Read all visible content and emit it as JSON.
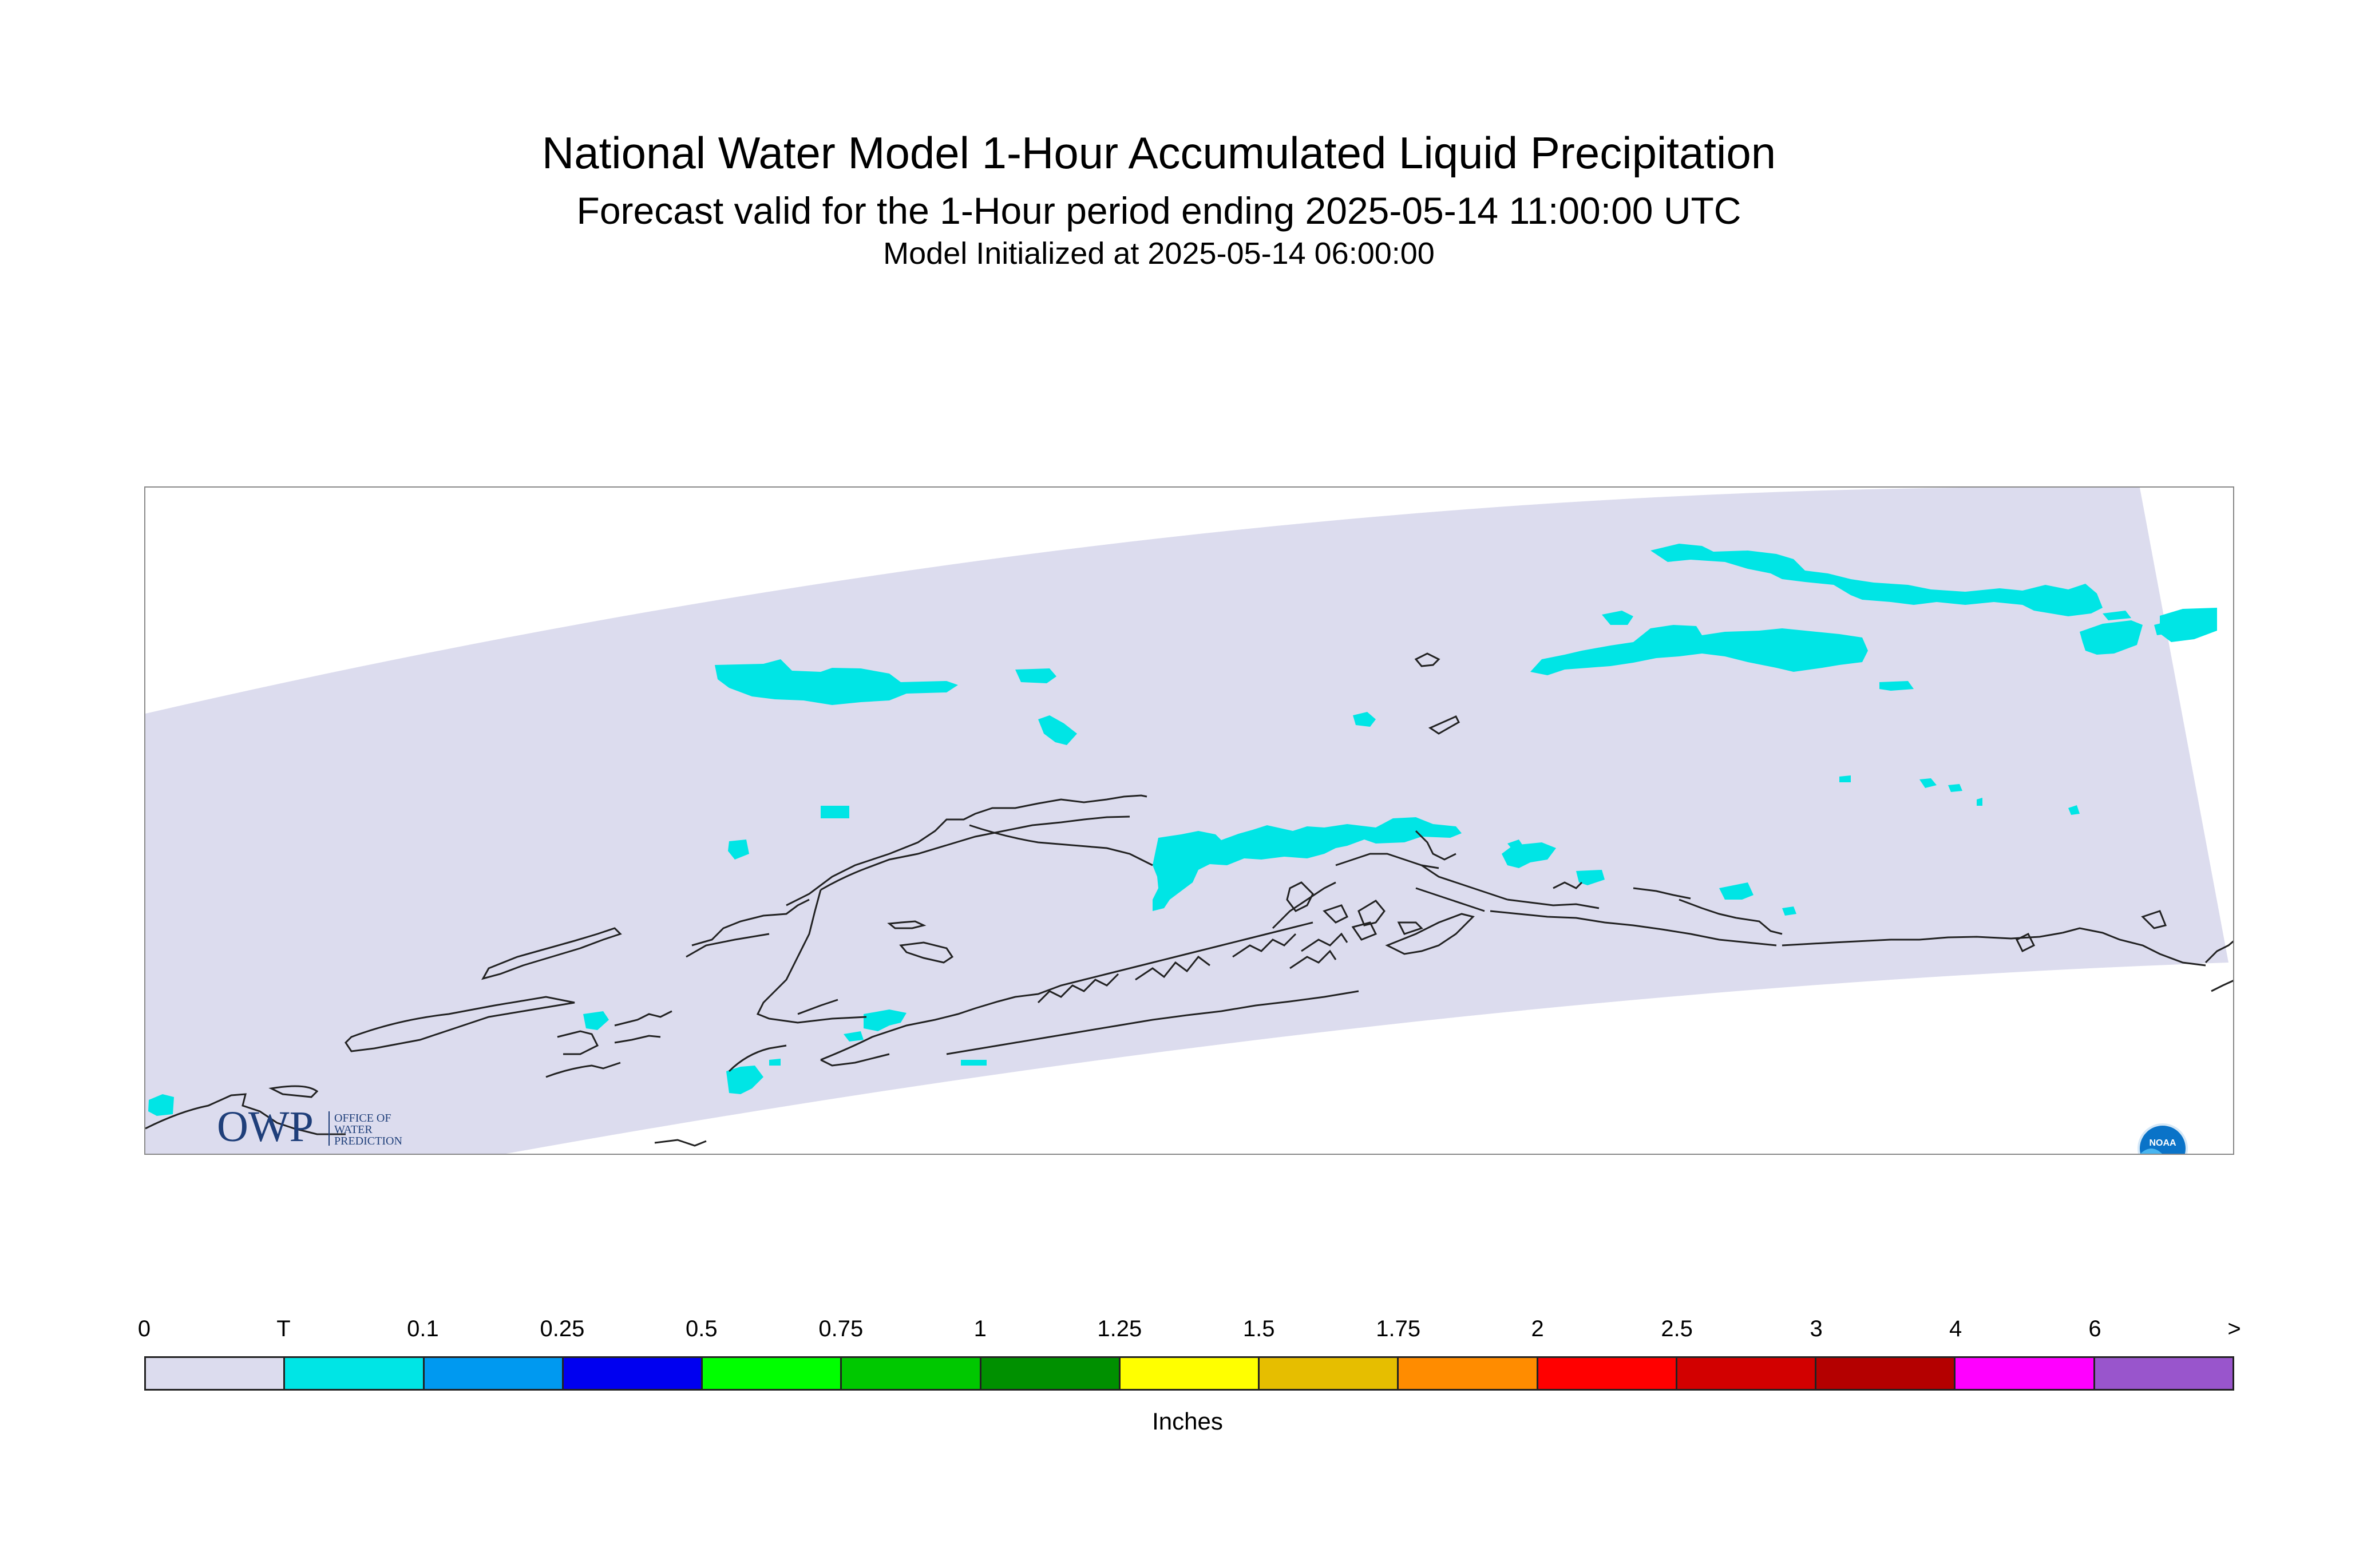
{
  "title": "National Water Model 1-Hour Accumulated Liquid Precipitation",
  "subtitle": "Forecast valid for the 1-Hour period ending 2025-05-14 11:00:00 UTC",
  "init_line": "Model Initialized at 2025-05-14 06:00:00",
  "map": {
    "domain_fill": "#dcdcee",
    "precip_color": "#00e5e5",
    "coastline_color": "#222222",
    "owp_logo": {
      "big": "OWP",
      "line1": "OFFICE OF",
      "line2": "WATER",
      "line3": "PREDICTION"
    },
    "noaa_logo": {
      "text": "NOAA"
    }
  },
  "legend": {
    "units": "Inches",
    "labels": [
      "0",
      "T",
      "0.1",
      "0.25",
      "0.5",
      "0.75",
      "1",
      "1.25",
      "1.5",
      "1.75",
      "2",
      "2.5",
      "3",
      "4",
      "6",
      ">"
    ],
    "colors": [
      "#dcdcee",
      "#00e5e5",
      "#0099f0",
      "#0000f0",
      "#00ff00",
      "#00c800",
      "#009000",
      "#ffff00",
      "#e6be00",
      "#ff8c00",
      "#ff0000",
      "#d20000",
      "#b40000",
      "#ff00ff",
      "#9955cc"
    ]
  }
}
